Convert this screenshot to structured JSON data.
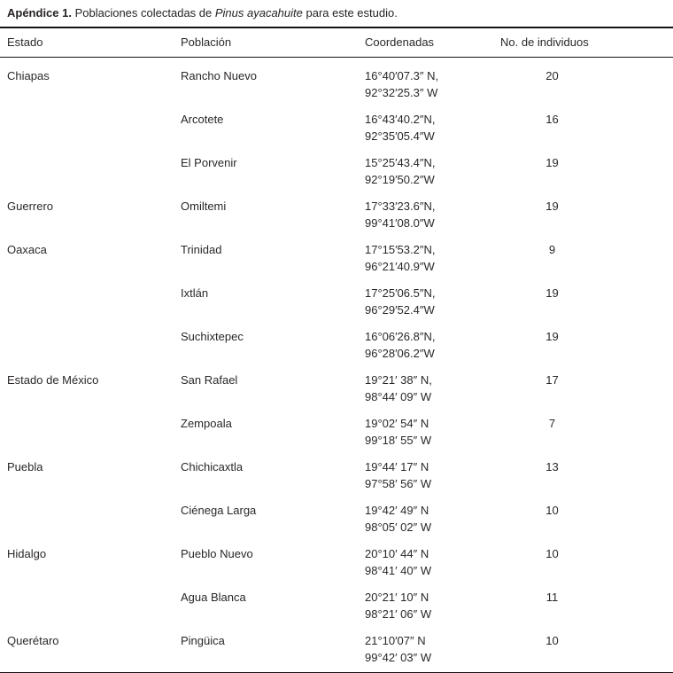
{
  "caption": {
    "label": "Apéndice 1.",
    "pre_species": " Poblaciones colectadas de ",
    "species": "Pinus ayacahuite",
    "post_species": " para este estudio."
  },
  "table": {
    "headers": [
      "Estado",
      "Población",
      "Coordenadas",
      "No. de individuos"
    ],
    "rows": [
      {
        "estado": "Chiapas",
        "poblacion": "Rancho Nuevo",
        "coord_n": "16°40′07.3″ N,",
        "coord_w": "92°32′25.3″ W",
        "individuos": "20"
      },
      {
        "estado": "",
        "poblacion": "Arcotete",
        "coord_n": "16°43′40.2″N,",
        "coord_w": "92°35′05.4″W",
        "individuos": "16"
      },
      {
        "estado": "",
        "poblacion": "El Porvenir",
        "coord_n": "15°25′43.4″N,",
        "coord_w": "92°19′50.2″W",
        "individuos": "19"
      },
      {
        "estado": "Guerrero",
        "poblacion": "Omiltemi",
        "coord_n": "17°33′23.6″N,",
        "coord_w": "99°41′08.0″W",
        "individuos": "19"
      },
      {
        "estado": "Oaxaca",
        "poblacion": "Trinidad",
        "coord_n": "17°15′53.2″N,",
        "coord_w": "96°21′40.9″W",
        "individuos": "9"
      },
      {
        "estado": "",
        "poblacion": "Ixtlán",
        "coord_n": "17°25′06.5″N,",
        "coord_w": "96°29′52.4″W",
        "individuos": "19"
      },
      {
        "estado": "",
        "poblacion": "Suchixtepec",
        "coord_n": "16°06′26.8″N,",
        "coord_w": "96°28′06.2″W",
        "individuos": "19"
      },
      {
        "estado": "Estado de México",
        "poblacion": "San Rafael",
        "coord_n": "19°21′ 38″ N,",
        "coord_w": "98°44′ 09″ W",
        "individuos": "17"
      },
      {
        "estado": "",
        "poblacion": "Zempoala",
        "coord_n": "19°02′ 54″ N",
        "coord_w": "99°18′ 55″ W",
        "individuos": "7"
      },
      {
        "estado": "Puebla",
        "poblacion": "Chichicaxtla",
        "coord_n": "19°44′ 17″ N",
        "coord_w": "97°58′ 56″ W",
        "individuos": "13"
      },
      {
        "estado": "",
        "poblacion": "Ciénega Larga",
        "coord_n": "19°42′ 49″ N",
        "coord_w": "98°05′ 02″ W",
        "individuos": "10"
      },
      {
        "estado": "Hidalgo",
        "poblacion": "Pueblo Nuevo",
        "coord_n": "20°10′ 44″ N",
        "coord_w": "98°41′ 40″ W",
        "individuos": "10"
      },
      {
        "estado": "",
        "poblacion": "Agua Blanca",
        "coord_n": "20°21′ 10″ N",
        "coord_w": "98°21′ 06″ W",
        "individuos": "11"
      },
      {
        "estado": "Querétaro",
        "poblacion": "Pingüica",
        "coord_n": "21°10′07″ N",
        "coord_w": "99°42′ 03″ W",
        "individuos": "10"
      }
    ]
  },
  "colors": {
    "text": "#2b2728",
    "rule": "#161314",
    "background": "#ffffff"
  }
}
